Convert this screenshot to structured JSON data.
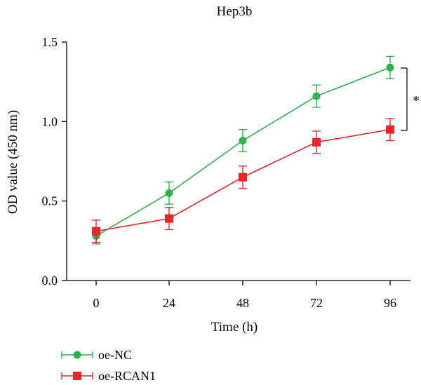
{
  "chart_data": {
    "type": "line",
    "title": "Hep3b",
    "xlabel": "Time (h)",
    "ylabel": "OD value (450 nm)",
    "x": [
      0,
      24,
      48,
      72,
      96
    ],
    "x_tick_labels": [
      "0",
      "24",
      "48",
      "72",
      "96"
    ],
    "ylim": [
      0,
      1.5
    ],
    "y_ticks": [
      0,
      0.5,
      1.0,
      1.5
    ],
    "y_tick_labels": [
      "0.0",
      "0.5",
      "1.0",
      "1.5"
    ],
    "grid": false,
    "legend_position": "bottom-left",
    "series": [
      {
        "name": "oe-NC",
        "color": "#2db34a",
        "marker": "circle",
        "values": [
          0.28,
          0.55,
          0.88,
          1.16,
          1.34
        ],
        "errors": [
          0.05,
          0.07,
          0.07,
          0.07,
          0.07
        ]
      },
      {
        "name": "oe-RCAN1",
        "color": "#e8262a",
        "marker": "square",
        "values": [
          0.31,
          0.39,
          0.65,
          0.87,
          0.95
        ],
        "errors": [
          0.07,
          0.07,
          0.07,
          0.07,
          0.07
        ]
      }
    ],
    "annotation": "*"
  }
}
